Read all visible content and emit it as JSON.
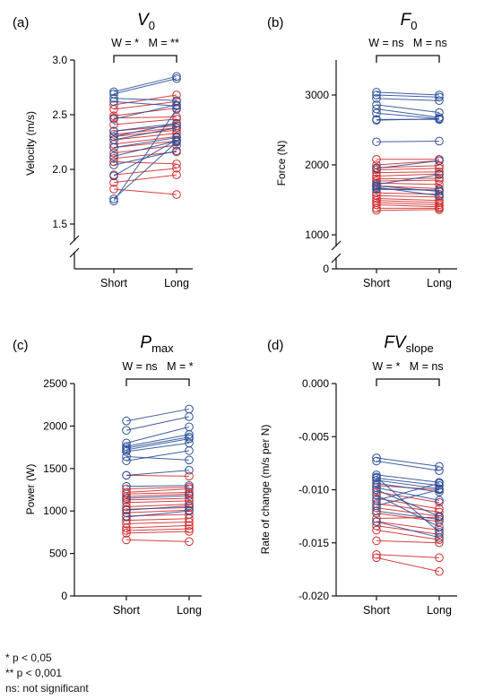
{
  "colors": {
    "women": "#d12b2b",
    "men": "#2a4f99",
    "axis": "#111111"
  },
  "x_categories": [
    "Short",
    "Long"
  ],
  "chart_data": [
    {
      "type": "line",
      "panel": "(a)",
      "title_main": "V",
      "title_sub": "0",
      "title_italic": true,
      "ylabel": "Velocity (m/s)",
      "ylim": [
        1.5,
        3.0
      ],
      "yticks": [
        "1.5",
        "2.0",
        "2.5",
        "3.0"
      ],
      "ytick_values": [
        1.5,
        2.0,
        2.5,
        3.0
      ],
      "axis_break": true,
      "zero_tick": "",
      "significance": "W = *   M = **",
      "series": [
        {
          "group": "women",
          "values": [
            [
              2.59,
              2.68
            ],
            [
              2.55,
              2.62
            ],
            [
              2.49,
              2.56
            ],
            [
              2.47,
              2.48
            ],
            [
              2.41,
              2.46
            ],
            [
              2.35,
              2.4
            ],
            [
              2.32,
              2.38
            ],
            [
              2.3,
              2.36
            ],
            [
              2.27,
              2.33
            ],
            [
              2.23,
              2.3
            ],
            [
              2.2,
              2.26
            ],
            [
              2.15,
              2.22
            ],
            [
              2.1,
              2.16
            ],
            [
              2.07,
              2.05
            ],
            [
              1.95,
              2.01
            ],
            [
              1.88,
              1.95
            ],
            [
              1.82,
              1.77
            ]
          ]
        },
        {
          "group": "men",
          "values": [
            [
              2.71,
              2.85
            ],
            [
              2.69,
              2.83
            ],
            [
              2.65,
              2.63
            ],
            [
              2.62,
              2.58
            ],
            [
              2.46,
              2.59
            ],
            [
              2.35,
              2.42
            ],
            [
              2.3,
              2.42
            ],
            [
              2.27,
              2.38
            ],
            [
              2.2,
              2.29
            ],
            [
              2.12,
              2.26
            ],
            [
              2.04,
              2.17
            ],
            [
              1.94,
              2.27
            ],
            [
              1.73,
              2.25
            ],
            [
              1.71,
              2.55
            ]
          ]
        }
      ]
    },
    {
      "type": "line",
      "panel": "(b)",
      "title_main": "F",
      "title_sub": "0",
      "title_italic": true,
      "ylabel": "Force (N)",
      "ylim": [
        1000,
        3500
      ],
      "yticks": [
        "1000",
        "2000",
        "3000"
      ],
      "ytick_values": [
        1000,
        2000,
        3000
      ],
      "axis_break": true,
      "zero_tick": "0",
      "significance": "W = ns   M = ns",
      "series": [
        {
          "group": "women",
          "values": [
            [
              2080,
              2080
            ],
            [
              2000,
              2060
            ],
            [
              1960,
              1990
            ],
            [
              1930,
              1950
            ],
            [
              1890,
              1900
            ],
            [
              1840,
              1870
            ],
            [
              1800,
              1810
            ],
            [
              1770,
              1780
            ],
            [
              1740,
              1720
            ],
            [
              1700,
              1660
            ],
            [
              1660,
              1640
            ],
            [
              1600,
              1580
            ],
            [
              1560,
              1540
            ],
            [
              1520,
              1490
            ],
            [
              1490,
              1460
            ],
            [
              1460,
              1430
            ],
            [
              1430,
              1400
            ],
            [
              1380,
              1380
            ],
            [
              1350,
              1360
            ]
          ]
        },
        {
          "group": "men",
          "values": [
            [
              3040,
              3000
            ],
            [
              3000,
              2970
            ],
            [
              2950,
              2920
            ],
            [
              2860,
              2750
            ],
            [
              2800,
              2680
            ],
            [
              2740,
              2660
            ],
            [
              2650,
              2650
            ],
            [
              2640,
              2660
            ],
            [
              2330,
              2340
            ],
            [
              1950,
              2060
            ],
            [
              1720,
              1860
            ],
            [
              1700,
              1620
            ],
            [
              1680,
              1560
            ],
            [
              1650,
              1640
            ]
          ]
        }
      ]
    },
    {
      "type": "line",
      "panel": "(c)",
      "title_main": "P",
      "title_sub": "max",
      "title_italic": true,
      "ylabel": "Power (W)",
      "ylim": [
        0,
        2500
      ],
      "yticks": [
        "0",
        "500",
        "1000",
        "1500",
        "2000",
        "2500"
      ],
      "ytick_values": [
        0,
        500,
        1000,
        1500,
        2000,
        2500
      ],
      "axis_break": false,
      "zero_tick": "",
      "significance": "W = ns   M = *",
      "series": [
        {
          "group": "women",
          "values": [
            [
              1420,
              1410
            ],
            [
              1260,
              1280
            ],
            [
              1220,
              1260
            ],
            [
              1200,
              1220
            ],
            [
              1170,
              1200
            ],
            [
              1130,
              1150
            ],
            [
              1100,
              1120
            ],
            [
              1050,
              1080
            ],
            [
              1020,
              1040
            ],
            [
              980,
              1010
            ],
            [
              940,
              960
            ],
            [
              890,
              910
            ],
            [
              850,
              870
            ],
            [
              800,
              830
            ],
            [
              770,
              790
            ],
            [
              740,
              760
            ],
            [
              660,
              640
            ]
          ]
        },
        {
          "group": "men",
          "values": [
            [
              2060,
              2200
            ],
            [
              1950,
              2110
            ],
            [
              1800,
              1990
            ],
            [
              1760,
              1900
            ],
            [
              1740,
              1870
            ],
            [
              1720,
              1850
            ],
            [
              1700,
              1800
            ],
            [
              1640,
              1600
            ],
            [
              1590,
              1710
            ],
            [
              1420,
              1480
            ],
            [
              1290,
              1300
            ],
            [
              1150,
              1180
            ],
            [
              1010,
              1060
            ],
            [
              930,
              1000
            ]
          ]
        }
      ]
    },
    {
      "type": "line",
      "panel": "(d)",
      "title_main": "FV",
      "title_sub": "slope",
      "title_italic": true,
      "ylabel": "Rate of change (m/s per N)",
      "ylim": [
        -0.02,
        0.0
      ],
      "yticks": [
        "0.000",
        "-0.005",
        "-0.010",
        "-0.015",
        "-0.020"
      ],
      "ytick_values": [
        0.0,
        -0.005,
        -0.01,
        -0.015,
        -0.02
      ],
      "axis_break": false,
      "zero_tick": "",
      "significance": "W = *   M = ns",
      "series": [
        {
          "group": "women",
          "values": [
            [
              -0.0096,
              -0.01
            ],
            [
              -0.0102,
              -0.0112
            ],
            [
              -0.0108,
              -0.0118
            ],
            [
              -0.0113,
              -0.0121
            ],
            [
              -0.0117,
              -0.0125
            ],
            [
              -0.0122,
              -0.013
            ],
            [
              -0.0127,
              -0.0126
            ],
            [
              -0.013,
              -0.0138
            ],
            [
              -0.0134,
              -0.0142
            ],
            [
              -0.0138,
              -0.0147
            ],
            [
              -0.0148,
              -0.015
            ],
            [
              -0.0161,
              -0.0164
            ],
            [
              -0.0164,
              -0.0177
            ]
          ]
        },
        {
          "group": "men",
          "values": [
            [
              -0.007,
              -0.0078
            ],
            [
              -0.0073,
              -0.0082
            ],
            [
              -0.0086,
              -0.0093
            ],
            [
              -0.0089,
              -0.0096
            ],
            [
              -0.0091,
              -0.0099
            ],
            [
              -0.0094,
              -0.0102
            ],
            [
              -0.0098,
              -0.011
            ],
            [
              -0.01,
              -0.0125
            ],
            [
              -0.0105,
              -0.0135
            ],
            [
              -0.0088,
              -0.014
            ],
            [
              -0.011,
              -0.0094
            ],
            [
              -0.0115,
              -0.01
            ],
            [
              -0.012,
              -0.0128
            ],
            [
              -0.013,
              -0.0145
            ]
          ]
        }
      ]
    }
  ],
  "footnotes": [
    "*   p < 0,05",
    "** p < 0,001",
    "ns: not significant"
  ]
}
